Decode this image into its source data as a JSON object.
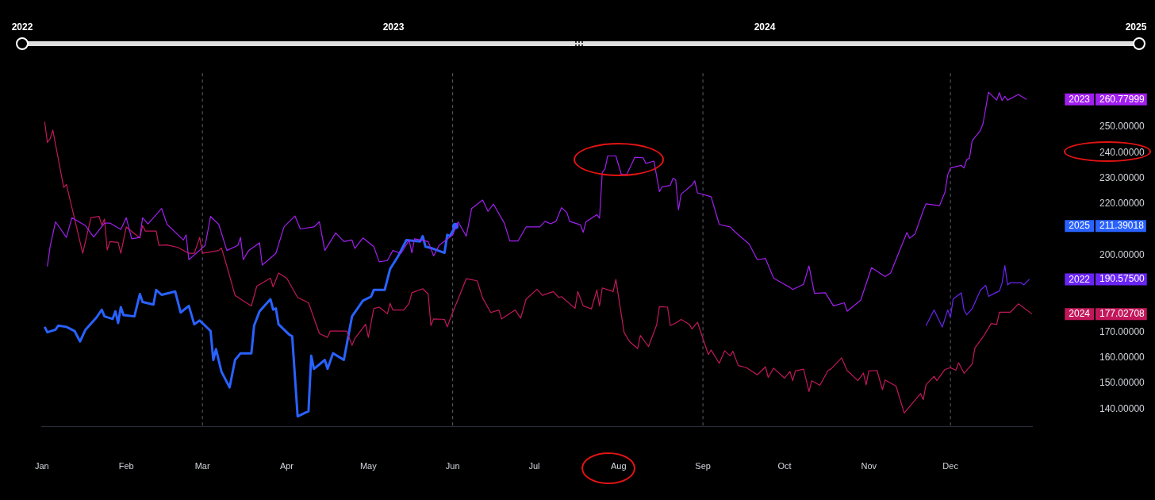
{
  "chart_data": {
    "type": "line",
    "annotations": [
      "2022",
      "2023",
      "2024",
      "2025"
    ],
    "xlim": [
      "--01-01",
      "--12-31"
    ],
    "xticks": [
      {
        "value": "--01-01",
        "label": "Jan"
      },
      {
        "value": "--02-01",
        "label": "Feb"
      },
      {
        "value": "--03-01",
        "label": "Mar"
      },
      {
        "value": "--04-01",
        "label": "Apr"
      },
      {
        "value": "--05-01",
        "label": "May"
      },
      {
        "value": "--06-01",
        "label": "Jun"
      },
      {
        "value": "--07-01",
        "label": "Jul"
      },
      {
        "value": "--08-01",
        "label": "Aug"
      },
      {
        "value": "--09-01",
        "label": "Sep"
      },
      {
        "value": "--10-01",
        "label": "Oct"
      },
      {
        "value": "--11-01",
        "label": "Nov"
      },
      {
        "value": "--12-01",
        "label": "Dec"
      }
    ],
    "ylim": [
      133,
      271
    ],
    "yticks": [
      {
        "value": 140,
        "label": "140.00000"
      },
      {
        "value": 150,
        "label": "150.00000"
      },
      {
        "value": 160,
        "label": "160.00000"
      },
      {
        "value": 170,
        "label": "170.00000"
      },
      {
        "value": 177.02708,
        "label": "177.02708"
      },
      {
        "value": 190.575,
        "label": "190.57500"
      },
      {
        "value": 200,
        "label": "200.00000"
      },
      {
        "value": 211.39018,
        "label": "211.39018"
      },
      {
        "value": 220,
        "label": "220.00000"
      },
      {
        "value": 230,
        "label": "230.00000"
      },
      {
        "value": 240,
        "label": "240.00000"
      },
      {
        "value": 250,
        "label": "250.00000"
      },
      {
        "value": 260.77999,
        "label": "260.77999"
      }
    ],
    "ref_lines": [
      {
        "axis": "x",
        "value": "--03-01",
        "line_style": "dashed",
        "color": "#5d606b"
      },
      {
        "axis": "x",
        "value": "--06-01",
        "line_style": "dashed",
        "color": "#5d606b"
      },
      {
        "axis": "x",
        "value": "--09-01",
        "line_style": "dashed",
        "color": "#5d606b"
      },
      {
        "axis": "x",
        "value": "--12-01",
        "line_style": "dashed",
        "color": "#5d606b"
      }
    ],
    "series": [
      {
        "name": "2023",
        "color": "#a21ff0",
        "x": [
          "--01-03",
          "--01-04",
          "--01-06",
          "--01-10",
          "--01-12",
          "--01-17",
          "--01-20",
          "--01-24",
          "--01-26",
          "--01-30",
          "--02-01",
          "--02-03",
          "--02-06",
          "--02-07",
          "--02-09",
          "--02-14",
          "--02-16",
          "--02-22",
          "--02-23",
          "--02-24",
          "--03-02",
          "--03-04",
          "--03-07",
          "--03-10",
          "--03-14",
          "--03-15",
          "--03-16",
          "--03-18",
          "--03-22",
          "--03-23",
          "--03-28",
          "--03-31",
          "--04-04",
          "--04-06",
          "--04-11",
          "--04-13",
          "--04-15",
          "--04-19",
          "--04-22",
          "--04-25",
          "--04-26",
          "--04-29",
          "--05-03",
          "--05-05",
          "--05-08",
          "--05-10",
          "--05-13",
          "--05-16",
          "--05-17",
          "--05-18",
          "--05-23",
          "--05-25",
          "--05-27",
          "--06-01",
          "--06-03",
          "--06-06",
          "--06-08",
          "--06-12",
          "--06-14",
          "--06-16",
          "--06-20",
          "--06-22",
          "--06-25",
          "--06-28",
          "--07-03",
          "--07-05",
          "--07-07",
          "--07-09",
          "--07-11",
          "--07-13",
          "--07-14",
          "--07-18",
          "--07-19",
          "--07-20",
          "--07-24",
          "--07-25",
          "--07-26",
          "--07-27",
          "--07-28",
          "--07-31",
          "--08-02",
          "--08-04",
          "--08-07",
          "--08-10",
          "--08-11",
          "--08-14",
          "--08-16",
          "--08-17",
          "--08-20",
          "--08-21",
          "--08-22",
          "--08-23",
          "--08-24",
          "--08-28",
          "--08-29",
          "--08-30",
          "--09-04",
          "--09-07",
          "--09-11",
          "--09-13",
          "--09-18",
          "--09-21",
          "--09-24",
          "--09-27",
          "--10-01",
          "--10-03",
          "--10-04",
          "--10-08",
          "--10-10",
          "--10-12",
          "--10-16",
          "--10-19",
          "--10-23",
          "--10-24",
          "--10-29",
          "--11-02",
          "--11-07",
          "--11-09",
          "--11-15",
          "--11-16",
          "--11-18",
          "--11-21",
          "--11-22",
          "--11-27",
          "--11-29",
          "--11-30",
          "--12-01",
          "--12-05",
          "--12-06",
          "--12-07",
          "--12-08",
          "--12-09",
          "--12-12",
          "--12-13",
          "--12-15",
          "--12-18",
          "--12-19",
          "--12-20",
          "--12-21",
          "--12-22",
          "--12-26",
          "--12-27",
          "--12-29"
        ],
        "values": [
          195.6,
          203.3,
          213.0,
          206.9,
          214.6,
          211.5,
          207.1,
          212.5,
          212.5,
          210.0,
          214.6,
          206.4,
          206.9,
          214.6,
          212.2,
          218.2,
          212.0,
          205.9,
          207.9,
          198.2,
          203.8,
          215.1,
          212.0,
          201.8,
          203.8,
          206.9,
          198.2,
          201.8,
          204.8,
          196.1,
          200.7,
          211.0,
          215.3,
          210.2,
          211.0,
          213.0,
          201.8,
          208.7,
          205.3,
          205.9,
          202.6,
          206.7,
          203.3,
          197.4,
          197.9,
          201.8,
          200.7,
          205.9,
          200.9,
          206.4,
          205.3,
          199.7,
          203.8,
          207.9,
          213.0,
          207.4,
          218.2,
          221.5,
          217.1,
          219.9,
          212.5,
          205.5,
          205.5,
          211.0,
          211.0,
          213.2,
          212.2,
          213.2,
          218.5,
          216.6,
          213.2,
          211.8,
          208.9,
          213.0,
          215.8,
          214.4,
          232.3,
          233.6,
          238.7,
          238.7,
          231.5,
          231.5,
          238.2,
          238.0,
          235.8,
          236.7,
          224.8,
          226.6,
          227.2,
          230.0,
          229.3,
          217.7,
          223.8,
          227.4,
          229.0,
          224.3,
          222.8,
          212.0,
          211.0,
          208.9,
          204.3,
          198.2,
          198.7,
          191.0,
          188.6,
          187.4,
          186.6,
          188.6,
          195.8,
          185.1,
          185.3,
          180.2,
          181.4,
          178.1,
          182.4,
          195.1,
          191.6,
          193.0,
          208.8,
          206.6,
          208.3,
          217.4,
          220.0,
          219.3,
          224.6,
          231.3,
          234.0,
          235.0,
          234.0,
          237.3,
          237.8,
          244.7,
          248.6,
          251.4,
          263.6,
          260.5,
          263.4,
          260.3,
          262.0,
          260.5,
          262.7,
          262.0,
          260.77999
        ]
      },
      {
        "name": "2022",
        "color": "#6a24f5",
        "x": [
          "--11-22",
          "--11-25",
          "--11-28",
          "--11-30",
          "--12-01",
          "--12-02",
          "--12-05",
          "--12-06",
          "--12-07",
          "--12-09",
          "--12-12",
          "--12-14",
          "--12-15",
          "--12-17",
          "--12-19",
          "--12-20",
          "--12-21",
          "--12-22",
          "--12-23",
          "--12-27",
          "--12-28",
          "--12-30"
        ],
        "values": [
          172.4,
          178.6,
          171.9,
          178.6,
          175.7,
          182.9,
          185.3,
          178.6,
          176.7,
          179.1,
          186.3,
          188.2,
          183.9,
          185.0,
          186.0,
          189.2,
          195.9,
          188.4,
          189.2,
          189.2,
          188.4,
          190.575
        ]
      },
      {
        "name": "2024",
        "color": "#c2185b",
        "x": [
          "--01-02",
          "--01-03",
          "--01-04",
          "--01-05",
          "--01-09",
          "--01-10",
          "--01-16",
          "--01-19",
          "--01-22",
          "--01-23",
          "--01-24",
          "--01-25",
          "--01-26",
          "--01-29",
          "--01-30",
          "--02-01",
          "--02-06",
          "--02-07",
          "--02-08",
          "--02-12",
          "--02-13",
          "--02-16",
          "--02-20",
          "--02-24",
          "--02-26",
          "--02-28",
          "--03-01",
          "--03-07",
          "--03-08",
          "--03-10",
          "--03-13",
          "--03-16",
          "--03-19",
          "--03-21",
          "--03-26",
          "--03-27",
          "--03-29",
          "--04-01",
          "--04-05",
          "--04-09",
          "--04-13",
          "--04-16",
          "--04-17",
          "--04-23",
          "--04-25",
          "--04-26",
          "--04-30",
          "--05-01",
          "--05-03",
          "--05-05",
          "--05-08",
          "--05-09",
          "--05-10",
          "--05-14",
          "--05-16",
          "--05-17",
          "--05-21",
          "--05-23",
          "--05-24",
          "--05-25",
          "--05-29",
          "--05-30",
          "--06-01",
          "--06-06",
          "--06-10",
          "--06-12",
          "--06-15",
          "--06-18",
          "--06-19",
          "--06-24",
          "--06-26",
          "--06-28",
          "--07-02",
          "--07-04",
          "--07-08",
          "--07-10",
          "--07-11",
          "--07-16",
          "--07-17",
          "--07-19",
          "--07-22",
          "--07-24",
          "--07-25",
          "--07-26",
          "--07-30",
          "--07-31",
          "--08-03",
          "--08-05",
          "--08-08",
          "--08-09",
          "--08-12",
          "--08-15",
          "--08-16",
          "--08-19",
          "--08-20",
          "--08-22",
          "--08-24",
          "--08-27",
          "--08-28",
          "--08-30",
          "--09-03",
          "--09-04",
          "--09-07",
          "--09-09",
          "--09-11",
          "--09-12",
          "--09-14",
          "--09-17",
          "--09-21",
          "--09-24",
          "--09-25",
          "--09-27",
          "--10-01",
          "--10-03",
          "--10-04",
          "--10-05",
          "--10-08",
          "--10-10",
          "--10-11",
          "--10-14",
          "--10-17",
          "--10-18",
          "--10-22",
          "--10-24",
          "--10-28",
          "--10-30",
          "--10-31",
          "--11-01",
          "--11-04",
          "--11-06",
          "--11-07",
          "--11-11",
          "--11-14",
          "--11-20",
          "--11-21",
          "--11-22",
          "--11-25",
          "--11-26",
          "--11-29",
          "--12-01",
          "--12-03",
          "--12-04",
          "--12-06",
          "--12-09",
          "--12-10",
          "--12-13",
          "--12-16",
          "--12-18",
          "--12-19",
          "--12-23",
          "--12-26",
          "--12-31"
        ],
        "values": [
          252.1,
          244.0,
          245.4,
          248.8,
          226.4,
          227.6,
          200.7,
          214.6,
          215.1,
          211.7,
          214.1,
          202.0,
          205.3,
          205.0,
          200.7,
          211.0,
          206.7,
          211.5,
          209.4,
          209.4,
          203.8,
          204.0,
          203.0,
          200.7,
          200.7,
          206.9,
          200.7,
          201.8,
          202.8,
          195.6,
          184.3,
          182.2,
          180.2,
          187.9,
          191.0,
          187.6,
          193.0,
          191.0,
          183.5,
          181.4,
          169.4,
          167.9,
          170.4,
          170.4,
          164.8,
          167.4,
          173.0,
          167.9,
          179.2,
          179.7,
          177.1,
          181.2,
          178.6,
          178.6,
          181.2,
          185.3,
          186.9,
          184.8,
          172.5,
          175.1,
          174.9,
          172.0,
          177.6,
          190.8,
          190.0,
          183.3,
          177.6,
          178.6,
          175.1,
          178.6,
          175.4,
          182.8,
          186.7,
          184.3,
          185.8,
          183.5,
          183.8,
          179.2,
          185.8,
          180.2,
          179.0,
          186.4,
          180.2,
          187.2,
          185.8,
          190.5,
          169.9,
          166.3,
          163.5,
          168.7,
          164.3,
          172.8,
          179.9,
          179.7,
          172.5,
          173.5,
          174.9,
          173.0,
          171.2,
          173.8,
          161.2,
          163.0,
          157.8,
          162.7,
          160.7,
          162.5,
          156.9,
          156.1,
          153.3,
          156.4,
          152.3,
          155.9,
          152.0,
          154.6,
          151.0,
          154.8,
          155.5,
          146.8,
          151.0,
          149.2,
          155.0,
          155.5,
          159.9,
          155.0,
          151.0,
          154.0,
          149.4,
          154.8,
          155.0,
          147.5,
          151.3,
          148.9,
          138.4,
          146.0,
          143.6,
          149.4,
          152.7,
          151.0,
          155.4,
          156.1,
          155.1,
          158.0,
          153.9,
          157.5,
          163.8,
          168.1,
          173.3,
          172.9,
          177.7,
          177.7,
          181.0,
          177.02708
        ]
      },
      {
        "name": "2025",
        "color": "#2962ff",
        "x": [
          "--01-02",
          "--01-03",
          "--01-06",
          "--01-07",
          "--01-10",
          "--01-13",
          "--01-15",
          "--01-17",
          "--01-21",
          "--01-23",
          "--01-24",
          "--01-27",
          "--01-28",
          "--01-29",
          "--01-30",
          "--01-31",
          "--02-04",
          "--02-06",
          "--02-07",
          "--02-11",
          "--02-12",
          "--02-14",
          "--02-19",
          "--02-21",
          "--02-24",
          "--02-26",
          "--02-28",
          "--03-04",
          "--03-05",
          "--03-06",
          "--03-08",
          "--03-11",
          "--03-13",
          "--03-15",
          "--03-19",
          "--03-20",
          "--03-22",
          "--03-26",
          "--03-27",
          "--03-28",
          "--03-29",
          "--04-02",
          "--04-03",
          "--04-05",
          "--04-09",
          "--04-10",
          "--04-11",
          "--04-15",
          "--04-16",
          "--04-18",
          "--04-22",
          "--04-25",
          "--04-29",
          "--05-02",
          "--05-03",
          "--05-07",
          "--05-09",
          "--05-12",
          "--05-15",
          "--05-20",
          "--05-21",
          "--05-22",
          "--05-24",
          "--05-29",
          "--05-30",
          "--05-31",
          "--06-02"
        ],
        "values": [
          172.0,
          169.9,
          170.9,
          172.5,
          172.0,
          170.4,
          166.3,
          170.9,
          175.6,
          178.7,
          176.1,
          175.1,
          178.1,
          173.5,
          179.7,
          176.6,
          176.1,
          184.8,
          181.7,
          180.7,
          186.4,
          184.5,
          185.8,
          177.6,
          180.2,
          173.0,
          174.5,
          170.4,
          159.1,
          163.3,
          154.5,
          148.4,
          159.1,
          161.7,
          161.7,
          172.5,
          178.1,
          182.8,
          178.7,
          179.2,
          173.0,
          168.9,
          168.4,
          137.1,
          139.1,
          160.7,
          155.6,
          159.1,
          155.6,
          161.7,
          159.1,
          176.1,
          182.2,
          183.8,
          186.4,
          186.4,
          194.6,
          199.7,
          205.9,
          205.3,
          207.4,
          203.3,
          202.8,
          200.9,
          207.9,
          207.4,
          211.39018
        ]
      }
    ]
  }
}
